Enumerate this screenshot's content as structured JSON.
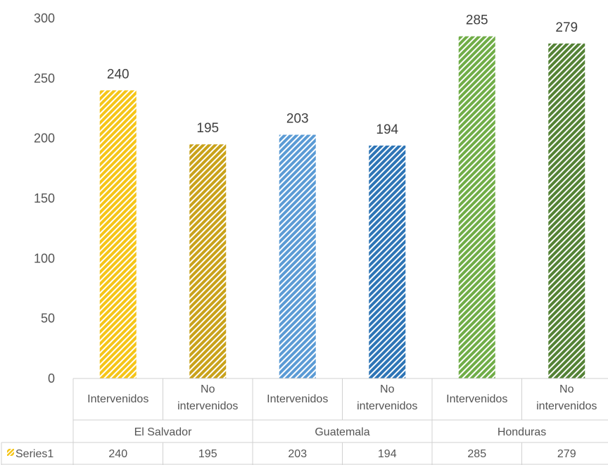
{
  "chart_data": {
    "type": "bar",
    "y_ticks": [
      0,
      50,
      100,
      150,
      200,
      250,
      300
    ],
    "ylim": [
      0,
      300
    ],
    "grid": false,
    "categories": [
      {
        "group": "El Salvador",
        "label": [
          "Intervenidos"
        ]
      },
      {
        "group": "El Salvador",
        "label": [
          "No",
          "intervenidos"
        ]
      },
      {
        "group": "Guatemala",
        "label": [
          "Intervenidos"
        ]
      },
      {
        "group": "Guatemala",
        "label": [
          "No",
          "intervenidos"
        ]
      },
      {
        "group": "Honduras",
        "label": [
          "Intervenidos"
        ]
      },
      {
        "group": "Honduras",
        "label": [
          "No",
          "intervenidos"
        ]
      }
    ],
    "groups": [
      "El Salvador",
      "Guatemala",
      "Honduras"
    ],
    "series": [
      {
        "name": "Series1",
        "values": [
          240,
          195,
          203,
          194,
          285,
          279
        ],
        "colors": [
          "#f5c518",
          "#c9a21a",
          "#5b9bd5",
          "#2e75b6",
          "#70ad47",
          "#548235"
        ]
      }
    ],
    "data_table": true,
    "data_labels": true
  }
}
